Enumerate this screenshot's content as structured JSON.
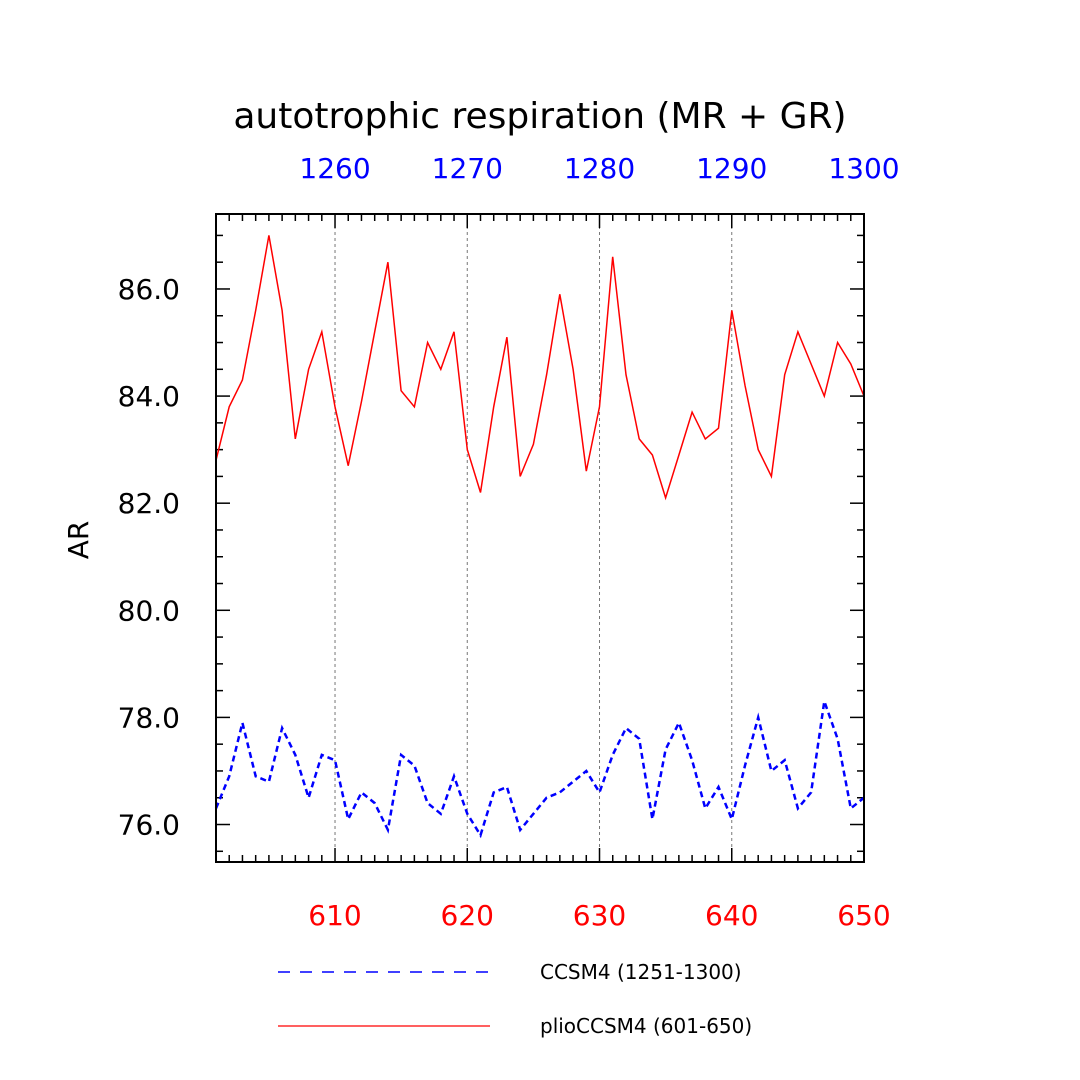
{
  "chart_data": {
    "type": "line",
    "title": "autotrophic respiration (MR + GR)",
    "ylabel": "AR",
    "xlim_bottom": [
      601,
      650
    ],
    "xlim_top": [
      1251,
      1300
    ],
    "ylim": [
      75.3,
      87.4
    ],
    "x_ticks_bottom": [
      "610",
      "620",
      "630",
      "640",
      "650"
    ],
    "x_ticks_top": [
      "1260",
      "1270",
      "1280",
      "1290",
      "1300"
    ],
    "y_ticks": [
      "76.0",
      "78.0",
      "80.0",
      "82.0",
      "84.0",
      "86.0"
    ],
    "grid": "vertical dashed at major x ticks",
    "legend_position": "bottom",
    "colors": {
      "bottom_axis": "#ff0000",
      "top_axis": "#0000ff"
    },
    "x": [
      601,
      602,
      603,
      604,
      605,
      606,
      607,
      608,
      609,
      610,
      611,
      612,
      613,
      614,
      615,
      616,
      617,
      618,
      619,
      620,
      621,
      622,
      623,
      624,
      625,
      626,
      627,
      628,
      629,
      630,
      631,
      632,
      633,
      634,
      635,
      636,
      637,
      638,
      639,
      640,
      641,
      642,
      643,
      644,
      645,
      646,
      647,
      648,
      649,
      650
    ],
    "series": [
      {
        "name": "CCSM4 (1251-1300)",
        "color": "#0000ff",
        "style": "dashed",
        "values": [
          76.3,
          76.9,
          77.9,
          76.9,
          76.8,
          77.8,
          77.3,
          76.5,
          77.3,
          77.2,
          76.1,
          76.6,
          76.4,
          75.9,
          77.3,
          77.1,
          76.4,
          76.2,
          76.9,
          76.2,
          75.8,
          76.6,
          76.7,
          75.9,
          76.2,
          76.5,
          76.6,
          76.8,
          77.0,
          76.6,
          77.3,
          77.8,
          77.6,
          76.1,
          77.4,
          77.9,
          77.2,
          76.3,
          76.7,
          76.1,
          77.1,
          78.0,
          77.0,
          77.2,
          76.3,
          76.6,
          78.3,
          77.6,
          76.3,
          76.5
        ]
      },
      {
        "name": "plioCCSM4 (601-650)",
        "color": "#ff0000",
        "style": "solid",
        "values": [
          82.8,
          83.8,
          84.3,
          85.6,
          87.0,
          85.6,
          83.2,
          84.5,
          85.2,
          83.8,
          82.7,
          83.9,
          85.2,
          86.5,
          84.1,
          83.8,
          85.0,
          84.5,
          85.2,
          83.0,
          82.2,
          83.8,
          85.1,
          82.5,
          83.1,
          84.4,
          85.9,
          84.5,
          82.6,
          83.8,
          86.6,
          84.4,
          83.2,
          82.9,
          82.1,
          82.9,
          83.7,
          83.2,
          83.4,
          85.6,
          84.2,
          83.0,
          82.5,
          84.4,
          85.2,
          84.6,
          84.0,
          85.0,
          84.6,
          84.0
        ]
      }
    ]
  }
}
